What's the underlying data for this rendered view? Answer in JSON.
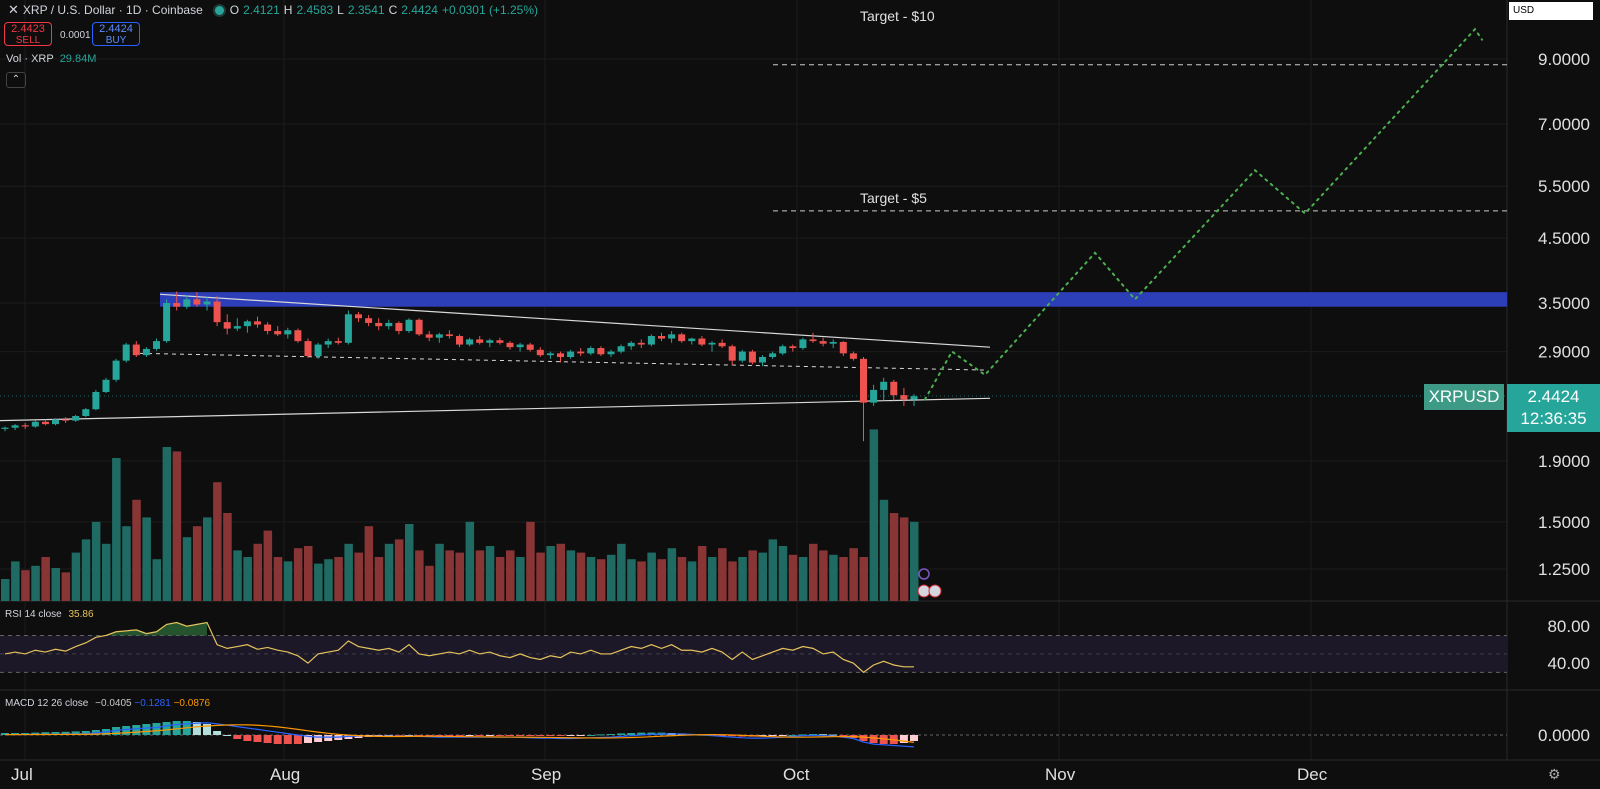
{
  "header": {
    "symbol": "XRP / U.S. Dollar · 1D · Coinbase",
    "open_label": "O",
    "open": "2.4121",
    "high_label": "H",
    "high": "2.4583",
    "low_label": "L",
    "low": "2.3541",
    "close_label": "C",
    "close": "2.4424",
    "change": "+0.0301 (+1.25%)"
  },
  "trade": {
    "sell_price": "2.4423",
    "sell_label": "SELL",
    "spread": "0.0001",
    "buy_price": "2.4424",
    "buy_label": "BUY"
  },
  "volume_legend": {
    "label": "Vol · XRP",
    "value": "29.84M"
  },
  "currency": "USD",
  "price_tag": {
    "symbol": "XRPUSD",
    "price": "2.4424",
    "countdown": "12:36:35"
  },
  "annotations": {
    "target10": "Target - $10",
    "target5": "Target - $5"
  },
  "rsi": {
    "label": "RSI 14 close",
    "value": "35.86"
  },
  "macd": {
    "label": "MACD 12 26 close",
    "v1": "−0.0405",
    "v2": "−0.1281",
    "v3": "−0.0876"
  },
  "colors": {
    "up": "#26a69a",
    "down": "#ef5350",
    "resistance": "#2c3fb8",
    "projection": "#4caf50",
    "rsi": "#e6c35c",
    "macd": "#2962ff",
    "signal": "#ff9800"
  },
  "chart_data": {
    "type": "candlestick",
    "x_labels": [
      "Jul",
      "Aug",
      "Sep",
      "Oct",
      "Nov",
      "Dec"
    ],
    "price_axis": [
      "9.0000",
      "7.0000",
      "5.5000",
      "4.5000",
      "3.5000",
      "2.9000",
      "1.9000",
      "1.5000",
      "1.2500"
    ],
    "rsi_axis": [
      "80.00",
      "40.00"
    ],
    "macd_axis": [
      "0.0000"
    ],
    "candles": [
      [
        2.15,
        2.17,
        2.13,
        2.16
      ],
      [
        2.16,
        2.19,
        2.14,
        2.18
      ],
      [
        2.18,
        2.2,
        2.15,
        2.17
      ],
      [
        2.17,
        2.22,
        2.16,
        2.21
      ],
      [
        2.21,
        2.23,
        2.18,
        2.19
      ],
      [
        2.19,
        2.24,
        2.18,
        2.23
      ],
      [
        2.23,
        2.25,
        2.2,
        2.22
      ],
      [
        2.22,
        2.27,
        2.21,
        2.26
      ],
      [
        2.26,
        2.33,
        2.25,
        2.32
      ],
      [
        2.32,
        2.5,
        2.31,
        2.48
      ],
      [
        2.48,
        2.62,
        2.47,
        2.6
      ],
      [
        2.6,
        2.82,
        2.58,
        2.8
      ],
      [
        2.8,
        3.0,
        2.78,
        2.98
      ],
      [
        2.98,
        3.02,
        2.84,
        2.86
      ],
      [
        2.86,
        2.95,
        2.84,
        2.93
      ],
      [
        2.93,
        3.05,
        2.91,
        3.02
      ],
      [
        3.02,
        3.55,
        3.0,
        3.5
      ],
      [
        3.5,
        3.66,
        3.4,
        3.45
      ],
      [
        3.45,
        3.6,
        3.42,
        3.55
      ],
      [
        3.55,
        3.65,
        3.45,
        3.48
      ],
      [
        3.48,
        3.58,
        3.4,
        3.52
      ],
      [
        3.52,
        3.6,
        3.2,
        3.25
      ],
      [
        3.25,
        3.35,
        3.1,
        3.17
      ],
      [
        3.17,
        3.3,
        3.14,
        3.2
      ],
      [
        3.2,
        3.28,
        3.12,
        3.26
      ],
      [
        3.26,
        3.32,
        3.18,
        3.22
      ],
      [
        3.22,
        3.25,
        3.1,
        3.14
      ],
      [
        3.14,
        3.2,
        3.08,
        3.1
      ],
      [
        3.1,
        3.18,
        3.05,
        3.15
      ],
      [
        3.15,
        3.17,
        3.0,
        3.02
      ],
      [
        3.02,
        3.05,
        2.83,
        2.85
      ],
      [
        2.85,
        3.0,
        2.82,
        2.98
      ],
      [
        2.98,
        3.05,
        2.94,
        3.02
      ],
      [
        3.02,
        3.06,
        2.98,
        3.0
      ],
      [
        3.0,
        3.4,
        2.98,
        3.35
      ],
      [
        3.35,
        3.38,
        3.25,
        3.3
      ],
      [
        3.3,
        3.34,
        3.2,
        3.24
      ],
      [
        3.24,
        3.3,
        3.15,
        3.2
      ],
      [
        3.2,
        3.28,
        3.16,
        3.24
      ],
      [
        3.24,
        3.26,
        3.1,
        3.14
      ],
      [
        3.14,
        3.3,
        3.12,
        3.28
      ],
      [
        3.28,
        3.3,
        3.08,
        3.1
      ],
      [
        3.1,
        3.14,
        3.02,
        3.06
      ],
      [
        3.06,
        3.12,
        3.0,
        3.1
      ],
      [
        3.1,
        3.15,
        3.05,
        3.08
      ],
      [
        3.08,
        3.1,
        2.95,
        2.98
      ],
      [
        2.98,
        3.06,
        2.96,
        3.04
      ],
      [
        3.04,
        3.08,
        2.98,
        3.0
      ],
      [
        3.0,
        3.05,
        2.95,
        3.03
      ],
      [
        3.03,
        3.06,
        2.98,
        3.0
      ],
      [
        3.0,
        3.02,
        2.92,
        2.95
      ],
      [
        2.95,
        3.0,
        2.9,
        2.98
      ],
      [
        2.98,
        3.0,
        2.9,
        2.92
      ],
      [
        2.92,
        2.95,
        2.84,
        2.86
      ],
      [
        2.86,
        2.9,
        2.82,
        2.88
      ],
      [
        2.88,
        2.9,
        2.78,
        2.84
      ],
      [
        2.84,
        2.92,
        2.82,
        2.9
      ],
      [
        2.9,
        2.94,
        2.85,
        2.88
      ],
      [
        2.88,
        2.96,
        2.86,
        2.94
      ],
      [
        2.94,
        2.96,
        2.85,
        2.87
      ],
      [
        2.87,
        2.92,
        2.84,
        2.9
      ],
      [
        2.9,
        2.98,
        2.88,
        2.96
      ],
      [
        2.96,
        3.02,
        2.92,
        3.0
      ],
      [
        3.0,
        3.04,
        2.94,
        2.98
      ],
      [
        2.98,
        3.1,
        2.96,
        3.08
      ],
      [
        3.08,
        3.12,
        3.02,
        3.05
      ],
      [
        3.05,
        3.14,
        3.0,
        3.1
      ],
      [
        3.1,
        3.12,
        3.0,
        3.02
      ],
      [
        3.02,
        3.06,
        2.98,
        3.05
      ],
      [
        3.05,
        3.08,
        2.96,
        2.98
      ],
      [
        2.98,
        3.02,
        2.9,
        3.0
      ],
      [
        3.0,
        3.04,
        2.94,
        2.96
      ],
      [
        2.96,
        2.98,
        2.75,
        2.8
      ],
      [
        2.8,
        2.92,
        2.78,
        2.9
      ],
      [
        2.9,
        2.92,
        2.76,
        2.78
      ],
      [
        2.78,
        2.86,
        2.74,
        2.84
      ],
      [
        2.84,
        2.9,
        2.82,
        2.88
      ],
      [
        2.88,
        2.98,
        2.86,
        2.96
      ],
      [
        2.96,
        2.98,
        2.9,
        2.94
      ],
      [
        2.94,
        3.06,
        2.92,
        3.04
      ],
      [
        3.04,
        3.12,
        3.0,
        3.02
      ],
      [
        3.02,
        3.06,
        2.96,
        2.99
      ],
      [
        2.99,
        3.04,
        2.94,
        3.01
      ],
      [
        3.01,
        3.02,
        2.85,
        2.88
      ],
      [
        2.88,
        2.9,
        2.8,
        2.82
      ],
      [
        2.82,
        2.84,
        2.05,
        2.38
      ],
      [
        2.38,
        2.55,
        2.35,
        2.5
      ],
      [
        2.5,
        2.62,
        2.4,
        2.58
      ],
      [
        2.58,
        2.6,
        2.4,
        2.45
      ],
      [
        2.45,
        2.52,
        2.35,
        2.41
      ],
      [
        2.41,
        2.46,
        2.35,
        2.44
      ]
    ],
    "volume": [
      1.0,
      1.8,
      1.4,
      1.6,
      2.0,
      1.5,
      1.3,
      2.2,
      2.8,
      3.6,
      2.6,
      6.5,
      3.4,
      4.6,
      3.8,
      1.9,
      7.0,
      6.8,
      2.9,
      3.4,
      3.8,
      5.4,
      4.0,
      2.3,
      2.0,
      2.6,
      3.2,
      2.0,
      1.8,
      2.4,
      2.5,
      1.7,
      1.9,
      2.0,
      2.6,
      2.2,
      3.4,
      2.0,
      2.6,
      2.8,
      3.5,
      2.3,
      1.6,
      2.6,
      2.3,
      2.2,
      3.6,
      2.3,
      2.5,
      2.0,
      2.3,
      2.0,
      3.6,
      2.2,
      2.5,
      2.6,
      2.3,
      2.2,
      2.0,
      1.9,
      2.1,
      2.6,
      1.9,
      1.8,
      2.2,
      1.9,
      2.4,
      2.0,
      1.8,
      2.5,
      2.0,
      2.4,
      1.8,
      2.0,
      2.3,
      2.2,
      2.8,
      2.5,
      2.1,
      2.0,
      2.6,
      2.3,
      2.1,
      2.0,
      2.4,
      2.0,
      7.8,
      4.6,
      4.0,
      3.8,
      3.6
    ],
    "rsi": [
      50,
      52,
      50,
      54,
      52,
      55,
      53,
      58,
      62,
      68,
      70,
      74,
      75,
      76,
      72,
      74,
      82,
      84,
      80,
      82,
      84,
      60,
      56,
      58,
      60,
      55,
      57,
      54,
      52,
      48,
      40,
      50,
      52,
      54,
      64,
      58,
      56,
      54,
      56,
      52,
      60,
      50,
      48,
      50,
      52,
      50,
      54,
      50,
      52,
      48,
      46,
      50,
      46,
      44,
      48,
      46,
      52,
      50,
      54,
      50,
      50,
      54,
      58,
      56,
      60,
      56,
      60,
      54,
      54,
      52,
      56,
      52,
      44,
      52,
      44,
      48,
      52,
      56,
      54,
      58,
      56,
      50,
      52,
      44,
      40,
      30,
      38,
      42,
      38,
      36,
      36
    ],
    "macd": [
      0.005,
      0.006,
      0.007,
      0.009,
      0.01,
      0.011,
      0.012,
      0.014,
      0.018,
      0.03,
      0.045,
      0.065,
      0.08,
      0.09,
      0.1,
      0.105,
      0.13,
      0.15,
      0.16,
      0.17,
      0.175,
      0.16,
      0.14,
      0.12,
      0.1,
      0.08,
      0.06,
      0.04,
      0.02,
      0.0,
      -0.02,
      -0.03,
      -0.03,
      -0.03,
      -0.02,
      -0.015,
      -0.015,
      -0.015,
      -0.015,
      -0.02,
      -0.015,
      -0.02,
      -0.025,
      -0.03,
      -0.03,
      -0.03,
      -0.03,
      -0.03,
      -0.03,
      -0.03,
      -0.03,
      -0.035,
      -0.04,
      -0.045,
      -0.045,
      -0.05,
      -0.05,
      -0.045,
      -0.04,
      -0.035,
      -0.03,
      -0.02,
      -0.01,
      0.0,
      0.01,
      0.015,
      0.015,
      0.015,
      0.01,
      0.0,
      -0.01,
      -0.02,
      -0.03,
      -0.04,
      -0.045,
      -0.045,
      -0.04,
      -0.03,
      -0.02,
      -0.01,
      -0.005,
      -0.01,
      -0.015,
      -0.03,
      -0.05,
      -0.1,
      -0.13,
      -0.14,
      -0.15,
      -0.16,
      -0.17
    ],
    "macd_hist": [
      0.01,
      0.01,
      0.01,
      0.012,
      0.014,
      0.015,
      0.016,
      0.018,
      0.02,
      0.025,
      0.03,
      0.04,
      0.045,
      0.05,
      0.055,
      0.06,
      0.065,
      0.07,
      0.07,
      0.065,
      0.055,
      0.02,
      0.0,
      -0.02,
      -0.03,
      -0.035,
      -0.04,
      -0.045,
      -0.045,
      -0.045,
      -0.04,
      -0.035,
      -0.03,
      -0.025,
      -0.02,
      -0.015,
      -0.01,
      -0.008,
      -0.006,
      -0.006,
      -0.004,
      -0.004,
      -0.004,
      -0.005,
      -0.005,
      -0.005,
      -0.004,
      -0.004,
      -0.003,
      -0.003,
      -0.003,
      -0.004,
      -0.004,
      -0.004,
      -0.004,
      -0.004,
      -0.003,
      -0.002,
      0.0,
      0.003,
      0.005,
      0.008,
      0.01,
      0.012,
      0.012,
      0.012,
      0.01,
      0.008,
      0.005,
      0.002,
      -0.002,
      -0.004,
      -0.006,
      -0.008,
      -0.008,
      -0.006,
      -0.004,
      -0.002,
      0.0,
      0.003,
      0.005,
      0.004,
      0.002,
      -0.005,
      -0.015,
      -0.03,
      -0.04,
      -0.045,
      -0.045,
      -0.04,
      -0.03
    ],
    "targets": [
      10,
      5
    ],
    "resistance_zone": [
      3.45,
      3.65
    ]
  }
}
